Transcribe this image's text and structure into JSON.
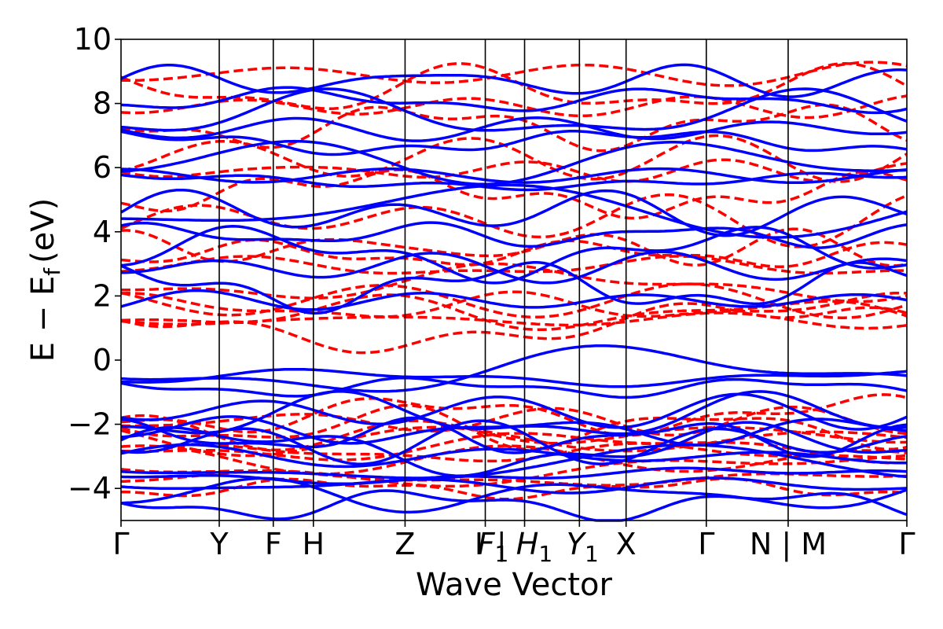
{
  "chart_data": {
    "type": "line",
    "title": "",
    "xlabel": "Wave Vector",
    "ylabel": "E − E",
    "ylabel_subscript": "f",
    "ylabel_unit": "(eV)",
    "ylim": [
      -5,
      10
    ],
    "yticks": [
      10,
      8,
      6,
      4,
      2,
      0,
      -2,
      -4
    ],
    "ytick_labels": [
      "10",
      "8",
      "6",
      "4",
      "2",
      "0",
      "−2",
      "−4"
    ],
    "grid": false,
    "legend": "none",
    "kpath_ticks": [
      {
        "label": "Γ",
        "x": 0.0,
        "italic": false
      },
      {
        "label": "Y",
        "x": 1.2,
        "italic": false
      },
      {
        "label": "F",
        "x": 1.86,
        "italic": false
      },
      {
        "label": "H",
        "x": 2.35,
        "italic": false
      },
      {
        "label": "Z",
        "x": 3.47,
        "italic": false
      },
      {
        "label": "I",
        "x": 4.45,
        "italic": false
      },
      {
        "label": "F",
        "x": 4.45,
        "italic": true,
        "sub": "1"
      },
      {
        "label": "| H",
        "x": 4.93,
        "italic": true,
        "sub": "1"
      },
      {
        "label": "Y",
        "x": 5.6,
        "italic": true,
        "sub": "1"
      },
      {
        "label": "X",
        "x": 6.17,
        "italic": false
      },
      {
        "label": "Γ",
        "x": 7.15,
        "italic": false
      },
      {
        "label": "N | M",
        "x": 8.15,
        "italic": false
      },
      {
        "label": "Γ",
        "x": 9.6,
        "italic": false
      }
    ],
    "xlim": [
      0,
      9.6
    ],
    "series": [
      {
        "style": "dashed",
        "color": "#ff0000",
        "bands_at_gamma": [
          1.05,
          1.25,
          1.45,
          1.65,
          1.85,
          2.4,
          2.9,
          3.3,
          3.5,
          4.4,
          5.2,
          5.9,
          6.3,
          7.3,
          7.9,
          8.4,
          8.9,
          -1.7,
          -1.9,
          -2.1,
          -2.3,
          -2.5,
          -2.7,
          -2.9,
          -3.1,
          -3.4,
          -3.7,
          -4.0
        ]
      },
      {
        "style": "solid",
        "color": "#0000ff",
        "bands_at_gamma": [
          -0.35,
          -0.55,
          -0.85,
          -1.6,
          -1.8,
          -2.2,
          -2.4,
          -2.6,
          -2.8,
          -3.0,
          -3.3,
          -3.6,
          -3.9,
          -4.2,
          -4.5,
          1.85,
          2.3,
          2.9,
          3.3,
          3.9,
          4.6,
          4.7,
          5.6,
          5.75,
          6.2,
          6.8,
          7.2,
          7.6,
          8.1,
          8.7
        ]
      }
    ]
  }
}
